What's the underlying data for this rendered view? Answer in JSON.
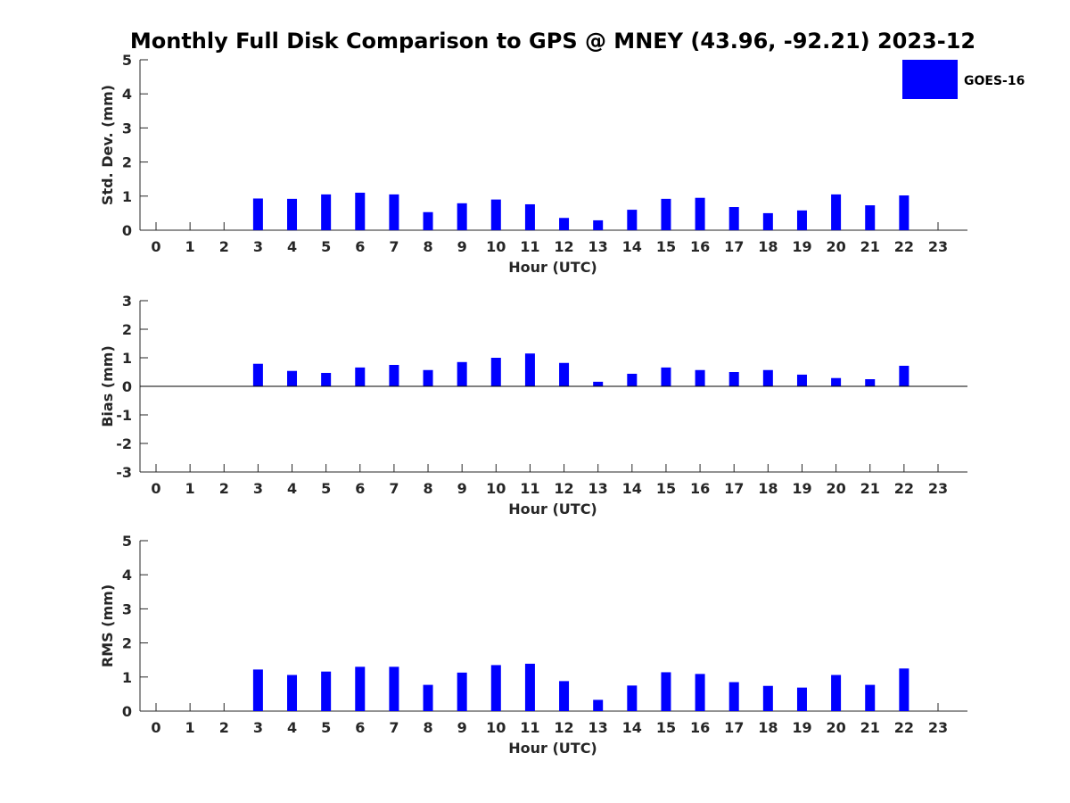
{
  "chart_data": [
    {
      "type": "bar",
      "title": "Monthly Full Disk Comparison to GPS @ MNEY (43.96, -92.21) 2023-12",
      "xlabel": "Hour (UTC)",
      "ylabel": "Std. Dev. (mm)",
      "ylim": [
        0,
        5
      ],
      "yticks": [
        "0",
        "1",
        "2",
        "3",
        "4",
        "5"
      ],
      "categories": [
        "0",
        "1",
        "2",
        "3",
        "4",
        "5",
        "6",
        "7",
        "8",
        "9",
        "10",
        "11",
        "12",
        "13",
        "14",
        "15",
        "16",
        "17",
        "18",
        "19",
        "20",
        "21",
        "22",
        "23"
      ],
      "series": [
        {
          "name": "GOES-16",
          "color": "#0000ff",
          "values": [
            null,
            null,
            null,
            0.93,
            0.92,
            1.05,
            1.1,
            1.05,
            0.53,
            0.79,
            0.9,
            0.76,
            0.36,
            0.29,
            0.6,
            0.92,
            0.95,
            0.68,
            0.5,
            0.58,
            1.05,
            0.73,
            1.02,
            null
          ]
        }
      ],
      "legend": {
        "position": "top-right",
        "entries": [
          "GOES-16"
        ]
      }
    },
    {
      "type": "bar",
      "xlabel": "Hour (UTC)",
      "ylabel": "Bias (mm)",
      "ylim": [
        -3,
        3
      ],
      "yticks": [
        "-3",
        "-2",
        "-1",
        "0",
        "1",
        "2",
        "3"
      ],
      "categories": [
        "0",
        "1",
        "2",
        "3",
        "4",
        "5",
        "6",
        "7",
        "8",
        "9",
        "10",
        "11",
        "12",
        "13",
        "14",
        "15",
        "16",
        "17",
        "18",
        "19",
        "20",
        "21",
        "22",
        "23"
      ],
      "series": [
        {
          "name": "GOES-16",
          "color": "#0000ff",
          "values": [
            null,
            null,
            null,
            0.79,
            0.54,
            0.47,
            0.66,
            0.75,
            0.57,
            0.85,
            1.0,
            1.15,
            0.82,
            0.16,
            0.44,
            0.66,
            0.57,
            0.5,
            0.57,
            0.41,
            0.29,
            0.25,
            0.72,
            null
          ]
        }
      ]
    },
    {
      "type": "bar",
      "xlabel": "Hour (UTC)",
      "ylabel": "RMS (mm)",
      "ylim": [
        0,
        5
      ],
      "yticks": [
        "0",
        "1",
        "2",
        "3",
        "4",
        "5"
      ],
      "categories": [
        "0",
        "1",
        "2",
        "3",
        "4",
        "5",
        "6",
        "7",
        "8",
        "9",
        "10",
        "11",
        "12",
        "13",
        "14",
        "15",
        "16",
        "17",
        "18",
        "19",
        "20",
        "21",
        "22",
        "23"
      ],
      "series": [
        {
          "name": "GOES-16",
          "color": "#0000ff",
          "values": [
            null,
            null,
            null,
            1.22,
            1.06,
            1.16,
            1.3,
            1.3,
            0.77,
            1.13,
            1.35,
            1.39,
            0.88,
            0.33,
            0.75,
            1.14,
            1.09,
            0.85,
            0.74,
            0.69,
            1.06,
            0.77,
            1.25,
            null
          ]
        }
      ]
    }
  ]
}
